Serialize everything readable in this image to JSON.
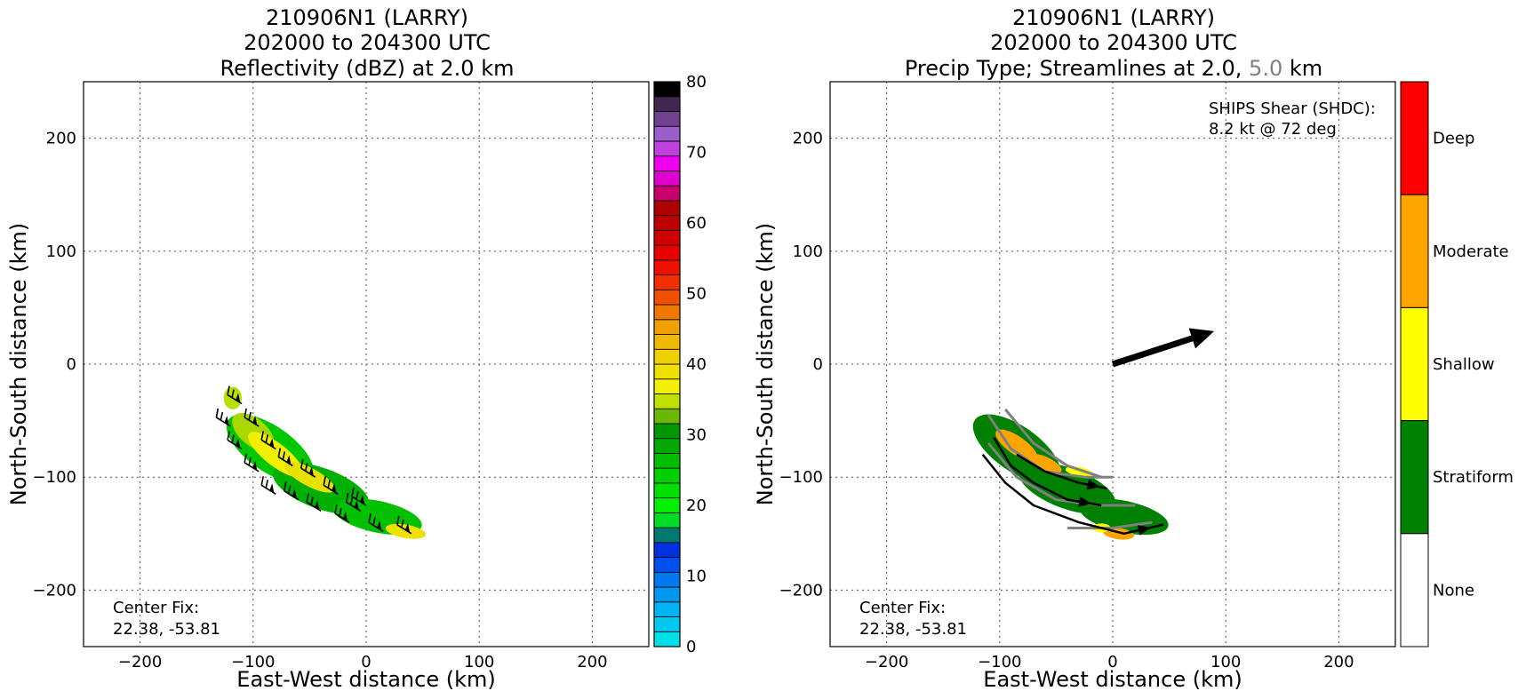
{
  "chart_data": [
    {
      "type": "heatmap",
      "title_lines": [
        "210906N1 (LARRY)",
        "202000 to 204300 UTC",
        "Reflectivity (dBZ) at 2.0 km"
      ],
      "xlabel": "East-West distance (km)",
      "ylabel": "North-South distance (km)",
      "xlim": [
        -250,
        250
      ],
      "ylim": [
        -250,
        250
      ],
      "xticks": [
        -200,
        -100,
        0,
        100,
        200
      ],
      "yticks": [
        200,
        100,
        0,
        -100,
        -200
      ],
      "grid": true,
      "annotation": [
        "Center Fix:",
        "22.38, -53.81"
      ],
      "colorbar": {
        "range": [
          0,
          80
        ],
        "ticks": [
          0,
          10,
          20,
          30,
          40,
          50,
          60,
          70,
          80
        ],
        "colors": [
          "#00e0e8",
          "#00c8f0",
          "#00b4f4",
          "#0098f0",
          "#0078f0",
          "#0050f0",
          "#0030e0",
          "#007a70",
          "#00dc28",
          "#00f000",
          "#00e000",
          "#00d000",
          "#00be00",
          "#00a800",
          "#009800",
          "#6cb800",
          "#c0e000",
          "#f0f000",
          "#f0e000",
          "#f0d000",
          "#f0b800",
          "#f0a000",
          "#f07800",
          "#f05000",
          "#f03000",
          "#f01000",
          "#e80000",
          "#d00000",
          "#c00000",
          "#b00000",
          "#c8006c",
          "#e000d0",
          "#f000f0",
          "#c040e0",
          "#9860c8",
          "#704090",
          "#402850",
          "#000000"
        ]
      },
      "echo_blobs": [
        {
          "x": -85,
          "y": -75,
          "rx": 45,
          "ry": 20,
          "angle": 35,
          "color": "#00c800"
        },
        {
          "x": -40,
          "y": -110,
          "rx": 45,
          "ry": 18,
          "angle": 20,
          "color": "#00b000"
        },
        {
          "x": 10,
          "y": -135,
          "rx": 40,
          "ry": 14,
          "angle": 12,
          "color": "#00c000"
        },
        {
          "x": -100,
          "y": -60,
          "rx": 22,
          "ry": 12,
          "angle": 40,
          "color": "#a8d800"
        },
        {
          "x": -80,
          "y": -80,
          "rx": 30,
          "ry": 10,
          "angle": 38,
          "color": "#f0f000"
        },
        {
          "x": -50,
          "y": -100,
          "rx": 25,
          "ry": 8,
          "angle": 28,
          "color": "#e8e000"
        },
        {
          "x": 35,
          "y": -148,
          "rx": 18,
          "ry": 6,
          "angle": 10,
          "color": "#f0e000"
        },
        {
          "x": -118,
          "y": -30,
          "rx": 8,
          "ry": 10,
          "angle": 0,
          "color": "#b8e000"
        }
      ],
      "wind_barbs": [
        {
          "x": -110,
          "y": -35
        },
        {
          "x": -95,
          "y": -55
        },
        {
          "x": -120,
          "y": -55
        },
        {
          "x": -80,
          "y": -75
        },
        {
          "x": -110,
          "y": -75
        },
        {
          "x": -65,
          "y": -90
        },
        {
          "x": -95,
          "y": -95
        },
        {
          "x": -45,
          "y": -100
        },
        {
          "x": -80,
          "y": -115
        },
        {
          "x": -25,
          "y": -115
        },
        {
          "x": -60,
          "y": -120
        },
        {
          "x": 0,
          "y": -125
        },
        {
          "x": -40,
          "y": -130
        },
        {
          "x": -15,
          "y": -140
        },
        {
          "x": 15,
          "y": -148
        },
        {
          "x": 40,
          "y": -150
        },
        {
          "x": -5,
          "y": -130
        }
      ]
    },
    {
      "type": "heatmap",
      "title_lines": [
        "210906N1 (LARRY)",
        "202000 to 204300 UTC"
      ],
      "title_line3_parts": [
        "Precip Type; Streamlines at 2.0,",
        "5.0",
        "km"
      ],
      "title_gray_color": "#808080",
      "xlabel": "East-West distance (km)",
      "ylabel": "North-South distance (km)",
      "xlim": [
        -250,
        250
      ],
      "ylim": [
        -250,
        250
      ],
      "xticks": [
        -200,
        -100,
        0,
        100,
        200
      ],
      "yticks": [
        200,
        100,
        0,
        -100,
        -200
      ],
      "grid": true,
      "annotation": [
        "Center Fix:",
        "22.38, -53.81"
      ],
      "shear_text": [
        "SHIPS Shear (SHDC):",
        "8.2 kt @ 72 deg"
      ],
      "shear_vector": {
        "kt": 8.2,
        "deg": 72
      },
      "categories": [
        {
          "label": "Deep",
          "color": "#ff0000"
        },
        {
          "label": "Moderate",
          "color": "#ffa500"
        },
        {
          "label": "Shallow",
          "color": "#ffff00"
        },
        {
          "label": "Stratiform",
          "color": "#008000"
        },
        {
          "label": "None",
          "color": "#ffffff"
        }
      ],
      "precip_blobs": [
        {
          "x": -85,
          "y": -75,
          "rx": 45,
          "ry": 20,
          "angle": 35,
          "color": "#008000"
        },
        {
          "x": -40,
          "y": -110,
          "rx": 45,
          "ry": 18,
          "angle": 20,
          "color": "#008000"
        },
        {
          "x": 10,
          "y": -135,
          "rx": 40,
          "ry": 14,
          "angle": 12,
          "color": "#008000"
        },
        {
          "x": -85,
          "y": -72,
          "rx": 22,
          "ry": 8,
          "angle": 35,
          "color": "#ffa500"
        },
        {
          "x": -60,
          "y": -88,
          "rx": 16,
          "ry": 6,
          "angle": 25,
          "color": "#ffa500"
        },
        {
          "x": 5,
          "y": -150,
          "rx": 14,
          "ry": 5,
          "angle": 8,
          "color": "#ffa500"
        },
        {
          "x": -30,
          "y": -95,
          "rx": 12,
          "ry": 4,
          "angle": 10,
          "color": "#ffff00"
        },
        {
          "x": -10,
          "y": -145,
          "rx": 8,
          "ry": 4,
          "angle": 0,
          "color": "#ffff00"
        }
      ],
      "streamlines_2km": [
        [
          [
            -105,
            -65
          ],
          [
            -90,
            -90
          ],
          [
            -70,
            -105
          ],
          [
            -40,
            -120
          ],
          [
            -10,
            -125
          ]
        ],
        [
          [
            -115,
            -80
          ],
          [
            -95,
            -105
          ],
          [
            -70,
            -125
          ],
          [
            -30,
            -140
          ],
          [
            10,
            -150
          ],
          [
            45,
            -142
          ]
        ],
        [
          [
            -85,
            -80
          ],
          [
            -60,
            -95
          ],
          [
            -30,
            -105
          ],
          [
            -5,
            -110
          ]
        ]
      ],
      "streamlines_5km": [
        [
          [
            -110,
            -45
          ],
          [
            -90,
            -75
          ],
          [
            -60,
            -95
          ],
          [
            -25,
            -100
          ],
          [
            0,
            -100
          ]
        ],
        [
          [
            -95,
            -40
          ],
          [
            -70,
            -70
          ],
          [
            -40,
            -90
          ],
          [
            -10,
            -100
          ]
        ],
        [
          [
            -110,
            -70
          ],
          [
            -85,
            -100
          ],
          [
            -50,
            -120
          ],
          [
            -10,
            -125
          ],
          [
            20,
            -125
          ]
        ],
        [
          [
            -40,
            -145
          ],
          [
            0,
            -145
          ],
          [
            35,
            -140
          ]
        ]
      ]
    }
  ]
}
